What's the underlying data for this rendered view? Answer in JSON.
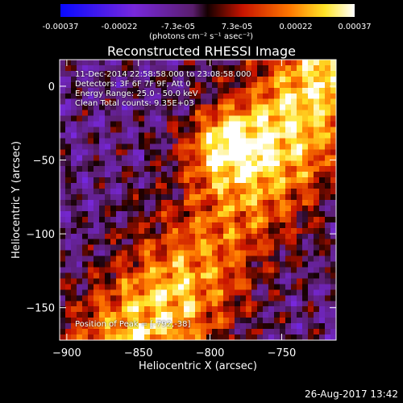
{
  "colorbar": {
    "ticks": [
      "-0.00037",
      "-0.00022",
      "-7.3e-05",
      "7.3e-05",
      "0.00022",
      "0.00037"
    ],
    "unit_label": "(photons cm⁻² s⁻¹ asec⁻²)",
    "range": [
      -0.00037,
      0.00037
    ]
  },
  "chart_data": {
    "type": "heatmap",
    "title": "Reconstructed RHESSI Image",
    "xlabel": "Heliocentric X (arcsec)",
    "ylabel": "Heliocentric Y (arcsec)",
    "xlim": [
      -905,
      -712
    ],
    "ylim": [
      -172,
      18
    ],
    "xticks": [
      -900,
      -850,
      -800,
      -750
    ],
    "yticks": [
      0,
      -50,
      -100,
      -150
    ],
    "xtick_labels": [
      "−900",
      "−850",
      "−800",
      "−750"
    ],
    "ytick_labels": [
      "0",
      "−50",
      "−100",
      "−150"
    ],
    "peak_position": [
      -792,
      -38
    ],
    "colormap": "blue-purple-red-yellow-white",
    "info_lines": [
      "11-Dec-2014 22:58:58.000 to 23:08:58.000",
      "Detectors: 3F 6F 7F 9F, Att 0",
      "Energy Range: 25.0 - 50.0 keV",
      "Clean    Total counts: 9.35E+03"
    ],
    "peak_label": "Position of Peak = [-792,-38]"
  },
  "footer": {
    "timestamp": "26-Aug-2017 13:42"
  }
}
